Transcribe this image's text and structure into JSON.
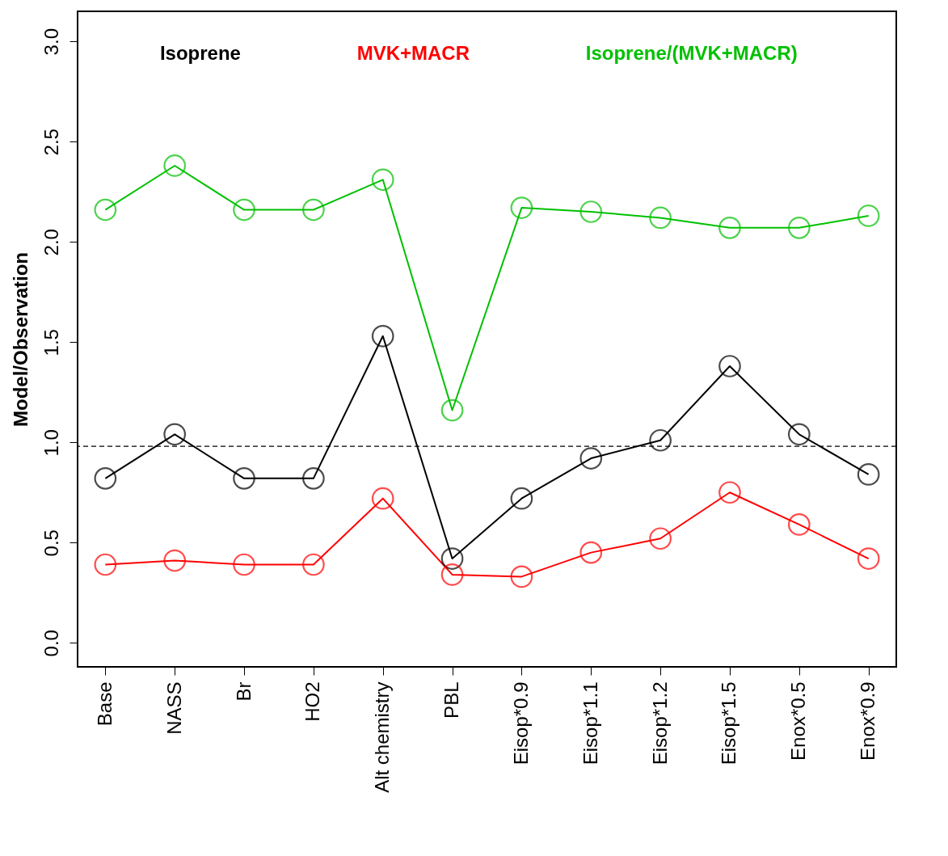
{
  "chart_data": {
    "type": "line",
    "ylabel": "Model/Observation",
    "categories": [
      "Base",
      "NASS",
      "Br",
      "HO2",
      "Alt chemistry",
      "PBL",
      "Eisop*0.9",
      "Eisop*1.1",
      "Eisop*1.2",
      "Eisop*1.5",
      "Enox*0.5",
      "Enox*0.9"
    ],
    "series": [
      {
        "name": "Isoprene",
        "color": "#000000",
        "values": [
          0.82,
          1.04,
          0.82,
          0.82,
          1.53,
          0.42,
          0.72,
          0.92,
          1.01,
          1.38,
          1.04,
          0.84
        ]
      },
      {
        "name": "MVK+MACR",
        "color": "#ff0000",
        "values": [
          0.39,
          0.41,
          0.39,
          0.39,
          0.72,
          0.34,
          0.33,
          0.45,
          0.52,
          0.75,
          0.59,
          0.42
        ]
      },
      {
        "name": "Isoprene/(MVK+MACR)",
        "color": "#00c000",
        "values": [
          2.16,
          2.38,
          2.16,
          2.16,
          2.31,
          1.16,
          2.17,
          2.15,
          2.12,
          2.07,
          2.07,
          2.13
        ]
      }
    ],
    "ylim": [
      -0.12,
      3.15
    ],
    "yticks": [
      {
        "value": 0,
        "label": "0.0"
      },
      {
        "value": 0.5,
        "label": "0.5"
      },
      {
        "value": 1,
        "label": "1.0"
      },
      {
        "value": 1.5,
        "label": "1.5"
      },
      {
        "value": 2,
        "label": "2.0"
      },
      {
        "value": 2.5,
        "label": "2.5"
      },
      {
        "value": 3,
        "label": "3.0"
      }
    ],
    "ref_lines": [
      {
        "axis": "y",
        "value": 0.98,
        "line_style": "dashed",
        "color": "#000000"
      }
    ],
    "marker": "circle",
    "line_style": "solid",
    "grid": false,
    "legend": "top"
  }
}
